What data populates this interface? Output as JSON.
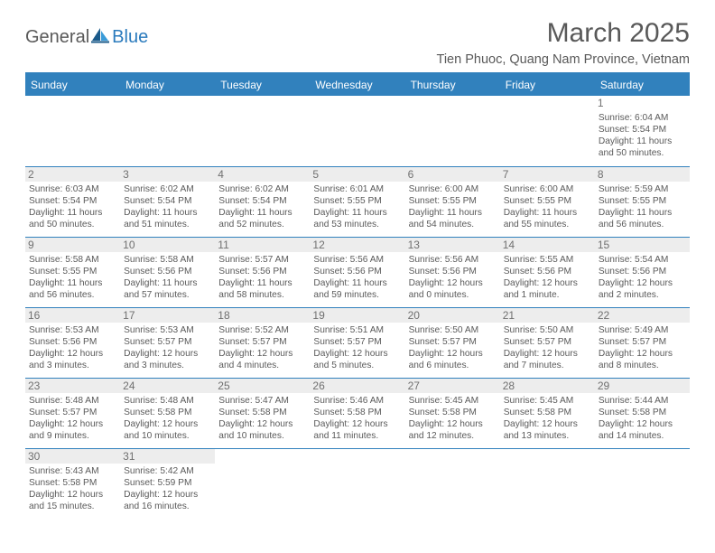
{
  "brand": {
    "text1": "General",
    "text2": "Blue"
  },
  "title": "March 2025",
  "location": "Tien Phuoc, Quang Nam Province, Vietnam",
  "colors": {
    "header_blue": "#3181bd",
    "text_gray": "#595959",
    "daynum_bg": "#ededed",
    "logo_blue": "#2b7bbd"
  },
  "day_headers": [
    "Sunday",
    "Monday",
    "Tuesday",
    "Wednesday",
    "Thursday",
    "Friday",
    "Saturday"
  ],
  "weeks": [
    [
      null,
      null,
      null,
      null,
      null,
      null,
      {
        "n": "1",
        "sr": "6:04 AM",
        "ss": "5:54 PM",
        "dl": "11 hours and 50 minutes."
      }
    ],
    [
      {
        "n": "2",
        "sr": "6:03 AM",
        "ss": "5:54 PM",
        "dl": "11 hours and 50 minutes."
      },
      {
        "n": "3",
        "sr": "6:02 AM",
        "ss": "5:54 PM",
        "dl": "11 hours and 51 minutes."
      },
      {
        "n": "4",
        "sr": "6:02 AM",
        "ss": "5:54 PM",
        "dl": "11 hours and 52 minutes."
      },
      {
        "n": "5",
        "sr": "6:01 AM",
        "ss": "5:55 PM",
        "dl": "11 hours and 53 minutes."
      },
      {
        "n": "6",
        "sr": "6:00 AM",
        "ss": "5:55 PM",
        "dl": "11 hours and 54 minutes."
      },
      {
        "n": "7",
        "sr": "6:00 AM",
        "ss": "5:55 PM",
        "dl": "11 hours and 55 minutes."
      },
      {
        "n": "8",
        "sr": "5:59 AM",
        "ss": "5:55 PM",
        "dl": "11 hours and 56 minutes."
      }
    ],
    [
      {
        "n": "9",
        "sr": "5:58 AM",
        "ss": "5:55 PM",
        "dl": "11 hours and 56 minutes."
      },
      {
        "n": "10",
        "sr": "5:58 AM",
        "ss": "5:56 PM",
        "dl": "11 hours and 57 minutes."
      },
      {
        "n": "11",
        "sr": "5:57 AM",
        "ss": "5:56 PM",
        "dl": "11 hours and 58 minutes."
      },
      {
        "n": "12",
        "sr": "5:56 AM",
        "ss": "5:56 PM",
        "dl": "11 hours and 59 minutes."
      },
      {
        "n": "13",
        "sr": "5:56 AM",
        "ss": "5:56 PM",
        "dl": "12 hours and 0 minutes."
      },
      {
        "n": "14",
        "sr": "5:55 AM",
        "ss": "5:56 PM",
        "dl": "12 hours and 1 minute."
      },
      {
        "n": "15",
        "sr": "5:54 AM",
        "ss": "5:56 PM",
        "dl": "12 hours and 2 minutes."
      }
    ],
    [
      {
        "n": "16",
        "sr": "5:53 AM",
        "ss": "5:56 PM",
        "dl": "12 hours and 3 minutes."
      },
      {
        "n": "17",
        "sr": "5:53 AM",
        "ss": "5:57 PM",
        "dl": "12 hours and 3 minutes."
      },
      {
        "n": "18",
        "sr": "5:52 AM",
        "ss": "5:57 PM",
        "dl": "12 hours and 4 minutes."
      },
      {
        "n": "19",
        "sr": "5:51 AM",
        "ss": "5:57 PM",
        "dl": "12 hours and 5 minutes."
      },
      {
        "n": "20",
        "sr": "5:50 AM",
        "ss": "5:57 PM",
        "dl": "12 hours and 6 minutes."
      },
      {
        "n": "21",
        "sr": "5:50 AM",
        "ss": "5:57 PM",
        "dl": "12 hours and 7 minutes."
      },
      {
        "n": "22",
        "sr": "5:49 AM",
        "ss": "5:57 PM",
        "dl": "12 hours and 8 minutes."
      }
    ],
    [
      {
        "n": "23",
        "sr": "5:48 AM",
        "ss": "5:57 PM",
        "dl": "12 hours and 9 minutes."
      },
      {
        "n": "24",
        "sr": "5:48 AM",
        "ss": "5:58 PM",
        "dl": "12 hours and 10 minutes."
      },
      {
        "n": "25",
        "sr": "5:47 AM",
        "ss": "5:58 PM",
        "dl": "12 hours and 10 minutes."
      },
      {
        "n": "26",
        "sr": "5:46 AM",
        "ss": "5:58 PM",
        "dl": "12 hours and 11 minutes."
      },
      {
        "n": "27",
        "sr": "5:45 AM",
        "ss": "5:58 PM",
        "dl": "12 hours and 12 minutes."
      },
      {
        "n": "28",
        "sr": "5:45 AM",
        "ss": "5:58 PM",
        "dl": "12 hours and 13 minutes."
      },
      {
        "n": "29",
        "sr": "5:44 AM",
        "ss": "5:58 PM",
        "dl": "12 hours and 14 minutes."
      }
    ],
    [
      {
        "n": "30",
        "sr": "5:43 AM",
        "ss": "5:58 PM",
        "dl": "12 hours and 15 minutes."
      },
      {
        "n": "31",
        "sr": "5:42 AM",
        "ss": "5:59 PM",
        "dl": "12 hours and 16 minutes."
      },
      null,
      null,
      null,
      null,
      null
    ]
  ],
  "labels": {
    "sunrise": "Sunrise: ",
    "sunset": "Sunset: ",
    "daylight": "Daylight: "
  }
}
